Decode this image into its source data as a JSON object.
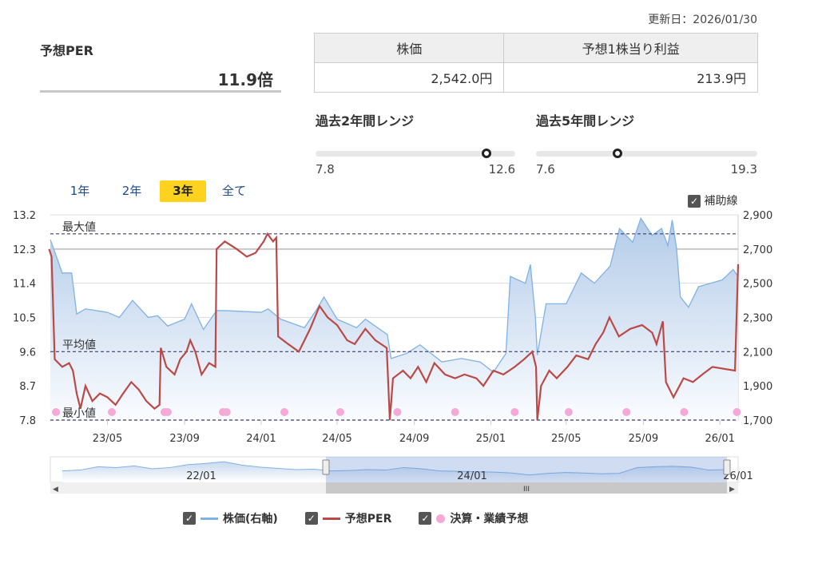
{
  "updated": "更新日：2026/01/30",
  "per": {
    "label": "予想PER",
    "value": "11.9倍"
  },
  "table": {
    "headers": [
      "株価",
      "予想1株当り利益"
    ],
    "values": [
      "2,542.0円",
      "213.9円"
    ]
  },
  "ranges": [
    {
      "title": "過去2年間レンジ",
      "min": "7.8",
      "max": "12.6",
      "current": 11.9,
      "min_v": 7.8,
      "max_v": 12.6
    },
    {
      "title": "過去5年間レンジ",
      "min": "7.6",
      "max": "19.3",
      "current": 11.9,
      "min_v": 7.6,
      "max_v": 19.3
    }
  ],
  "periods": [
    {
      "label": "1年",
      "active": false
    },
    {
      "label": "2年",
      "active": false
    },
    {
      "label": "3年",
      "active": true
    },
    {
      "label": "全て",
      "active": false
    }
  ],
  "aux_lines": {
    "label": "補助線",
    "checked": true
  },
  "legend": [
    {
      "label": "株価(右軸)",
      "color": "#7fb2e5"
    },
    {
      "label": "予想PER",
      "color": "#b94a48"
    },
    {
      "label": "決算・業績予想",
      "color": "#f5a9d6"
    }
  ],
  "chart_data": {
    "type": "line",
    "x_range": [
      "2023-01-30",
      "2026-01-30"
    ],
    "x_ticks": [
      "23/05",
      "23/09",
      "24/01",
      "24/05",
      "24/09",
      "25/01",
      "25/05",
      "25/09",
      "26/01"
    ],
    "x_tick_dates": [
      "2023-05-01",
      "2023-09-01",
      "2024-01-01",
      "2024-05-01",
      "2024-09-01",
      "2025-01-01",
      "2025-05-01",
      "2025-09-01",
      "2026-01-01"
    ],
    "y_left": {
      "ticks": [
        "13.2",
        "12.3",
        "11.4",
        "10.5",
        "9.6",
        "8.7",
        "7.8"
      ],
      "range": [
        7.8,
        13.2
      ]
    },
    "y_right": {
      "ticks": [
        "2,900",
        "2,700",
        "2,500",
        "2,300",
        "2,100",
        "1,900",
        "1,700"
      ],
      "range": [
        1700,
        2900
      ]
    },
    "ref_lines": [
      {
        "label": "最大値",
        "value": 12.7
      },
      {
        "label": "平均値",
        "value": 9.6
      },
      {
        "label": "最小値",
        "value": 7.8
      }
    ],
    "series": [
      {
        "name": "予想PER",
        "axis": "left",
        "color": "#b94a48",
        "points": [
          [
            "2023-01-28",
            12.3
          ],
          [
            "2023-02-01",
            12.1
          ],
          [
            "2023-02-06",
            9.4
          ],
          [
            "2023-02-18",
            9.2
          ],
          [
            "2023-03-01",
            9.3
          ],
          [
            "2023-03-07",
            9.1
          ],
          [
            "2023-03-13",
            8.5
          ],
          [
            "2023-03-19",
            8.1
          ],
          [
            "2023-03-27",
            8.7
          ],
          [
            "2023-04-07",
            8.3
          ],
          [
            "2023-04-19",
            8.5
          ],
          [
            "2023-05-01",
            8.4
          ],
          [
            "2023-05-14",
            8.2
          ],
          [
            "2023-05-26",
            8.5
          ],
          [
            "2023-06-08",
            8.8
          ],
          [
            "2023-06-20",
            8.6
          ],
          [
            "2023-07-02",
            8.3
          ],
          [
            "2023-07-15",
            8.1
          ],
          [
            "2023-07-23",
            8.2
          ],
          [
            "2023-07-25",
            9.7
          ],
          [
            "2023-08-03",
            9.2
          ],
          [
            "2023-08-16",
            9.0
          ],
          [
            "2023-08-25",
            9.4
          ],
          [
            "2023-09-04",
            9.6
          ],
          [
            "2023-09-10",
            9.9
          ],
          [
            "2023-09-18",
            9.6
          ],
          [
            "2023-09-28",
            9.0
          ],
          [
            "2023-10-10",
            9.3
          ],
          [
            "2023-10-20",
            9.2
          ],
          [
            "2023-10-22",
            12.3
          ],
          [
            "2023-11-04",
            12.5
          ],
          [
            "2023-11-23",
            12.3
          ],
          [
            "2023-12-09",
            12.1
          ],
          [
            "2023-12-23",
            12.2
          ],
          [
            "2024-01-05",
            12.5
          ],
          [
            "2024-01-11",
            12.7
          ],
          [
            "2024-01-20",
            12.5
          ],
          [
            "2024-01-25",
            12.6
          ],
          [
            "2024-01-28",
            10.0
          ],
          [
            "2024-02-13",
            9.8
          ],
          [
            "2024-03-01",
            9.6
          ],
          [
            "2024-03-19",
            10.2
          ],
          [
            "2024-04-03",
            10.8
          ],
          [
            "2024-04-16",
            10.5
          ],
          [
            "2024-05-01",
            10.3
          ],
          [
            "2024-05-17",
            9.9
          ],
          [
            "2024-05-29",
            9.8
          ],
          [
            "2024-06-15",
            10.2
          ],
          [
            "2024-07-01",
            9.9
          ],
          [
            "2024-07-19",
            9.7
          ],
          [
            "2024-07-24",
            7.8
          ],
          [
            "2024-07-29",
            8.9
          ],
          [
            "2024-08-14",
            9.1
          ],
          [
            "2024-08-26",
            8.9
          ],
          [
            "2024-09-07",
            9.2
          ],
          [
            "2024-09-20",
            8.8
          ],
          [
            "2024-10-03",
            9.3
          ],
          [
            "2024-10-20",
            9.0
          ],
          [
            "2024-11-05",
            8.9
          ],
          [
            "2024-11-20",
            9.0
          ],
          [
            "2024-12-09",
            8.9
          ],
          [
            "2024-12-20",
            8.7
          ],
          [
            "2025-01-05",
            9.1
          ],
          [
            "2025-01-21",
            9.0
          ],
          [
            "2025-02-08",
            9.2
          ],
          [
            "2025-02-23",
            9.4
          ],
          [
            "2025-03-08",
            9.6
          ],
          [
            "2025-03-14",
            9.2
          ],
          [
            "2025-03-16",
            7.8
          ],
          [
            "2025-03-22",
            8.7
          ],
          [
            "2025-04-04",
            9.1
          ],
          [
            "2025-04-16",
            8.9
          ],
          [
            "2025-05-03",
            9.2
          ],
          [
            "2025-05-17",
            9.5
          ],
          [
            "2025-06-05",
            9.4
          ],
          [
            "2025-06-17",
            9.8
          ],
          [
            "2025-06-29",
            10.1
          ],
          [
            "2025-07-09",
            10.5
          ],
          [
            "2025-07-24",
            10.0
          ],
          [
            "2025-08-11",
            10.2
          ],
          [
            "2025-08-30",
            10.3
          ],
          [
            "2025-09-15",
            10.1
          ],
          [
            "2025-09-22",
            9.8
          ],
          [
            "2025-10-02",
            10.4
          ],
          [
            "2025-10-07",
            8.8
          ],
          [
            "2025-10-19",
            8.4
          ],
          [
            "2025-11-04",
            8.9
          ],
          [
            "2025-11-19",
            8.8
          ],
          [
            "2025-12-04",
            9.0
          ],
          [
            "2025-12-20",
            9.2
          ],
          [
            "2026-01-25",
            9.1
          ],
          [
            "2026-01-30",
            11.9
          ]
        ]
      },
      {
        "name": "株価(右軸)",
        "axis": "right",
        "color": "#7fb2e5",
        "points": [
          [
            "2023-01-30",
            2755
          ],
          [
            "2023-02-06",
            2685
          ],
          [
            "2023-02-18",
            2560
          ],
          [
            "2023-03-05",
            2560
          ],
          [
            "2023-03-13",
            2320
          ],
          [
            "2023-03-27",
            2350
          ],
          [
            "2023-05-01",
            2330
          ],
          [
            "2023-05-20",
            2300
          ],
          [
            "2023-06-10",
            2400
          ],
          [
            "2023-07-05",
            2300
          ],
          [
            "2023-07-20",
            2310
          ],
          [
            "2023-08-05",
            2250
          ],
          [
            "2023-09-01",
            2290
          ],
          [
            "2023-09-12",
            2380
          ],
          [
            "2023-10-01",
            2230
          ],
          [
            "2023-10-22",
            2340
          ],
          [
            "2023-11-05",
            2340
          ],
          [
            "2024-01-01",
            2330
          ],
          [
            "2024-01-12",
            2350
          ],
          [
            "2024-02-01",
            2290
          ],
          [
            "2024-03-10",
            2240
          ],
          [
            "2024-03-30",
            2350
          ],
          [
            "2024-04-10",
            2420
          ],
          [
            "2024-05-01",
            2290
          ],
          [
            "2024-06-01",
            2240
          ],
          [
            "2024-06-15",
            2290
          ],
          [
            "2024-07-20",
            2200
          ],
          [
            "2024-07-26",
            2060
          ],
          [
            "2024-08-20",
            2090
          ],
          [
            "2024-09-10",
            2140
          ],
          [
            "2024-10-15",
            2040
          ],
          [
            "2024-11-15",
            2060
          ],
          [
            "2024-12-15",
            2040
          ],
          [
            "2025-01-05",
            1980
          ],
          [
            "2025-01-25",
            2090
          ],
          [
            "2025-02-01",
            2540
          ],
          [
            "2025-02-25",
            2500
          ],
          [
            "2025-03-05",
            2610
          ],
          [
            "2025-03-13",
            2300
          ],
          [
            "2025-03-16",
            2080
          ],
          [
            "2025-03-30",
            2380
          ],
          [
            "2025-05-01",
            2380
          ],
          [
            "2025-05-25",
            2560
          ],
          [
            "2025-06-15",
            2500
          ],
          [
            "2025-07-10",
            2600
          ],
          [
            "2025-07-25",
            2820
          ],
          [
            "2025-08-15",
            2740
          ],
          [
            "2025-08-28",
            2880
          ],
          [
            "2025-09-15",
            2780
          ],
          [
            "2025-09-30",
            2820
          ],
          [
            "2025-10-10",
            2720
          ],
          [
            "2025-10-17",
            2870
          ],
          [
            "2025-10-24",
            2700
          ],
          [
            "2025-10-30",
            2420
          ],
          [
            "2025-11-12",
            2360
          ],
          [
            "2025-11-28",
            2480
          ],
          [
            "2026-01-05",
            2520
          ],
          [
            "2026-01-22",
            2580
          ],
          [
            "2026-01-30",
            2540
          ]
        ]
      }
    ],
    "earnings_events": [
      "2023-02-08",
      "2023-05-08",
      "2023-07-31",
      "2023-08-05",
      "2023-11-01",
      "2023-11-07",
      "2024-02-07",
      "2024-05-06",
      "2024-08-05",
      "2024-11-05",
      "2025-02-08",
      "2025-05-05",
      "2025-08-05",
      "2025-11-05",
      "2026-01-28"
    ],
    "navigator": {
      "labels": [
        "22/01",
        "24/01",
        "26/01"
      ],
      "values": [
        2300,
        2320,
        2400,
        2380,
        2420,
        2350,
        2380,
        2450,
        2480,
        2520,
        2440,
        2390,
        2360,
        2330,
        2340,
        2300,
        2310,
        2330,
        2320,
        2380,
        2350,
        2300,
        2290,
        2280,
        2270,
        2250,
        2200,
        2240,
        2260,
        2250,
        2230,
        2240,
        2380,
        2400,
        2410,
        2390,
        2320,
        2330
      ],
      "selected_from": 0.4
    }
  }
}
